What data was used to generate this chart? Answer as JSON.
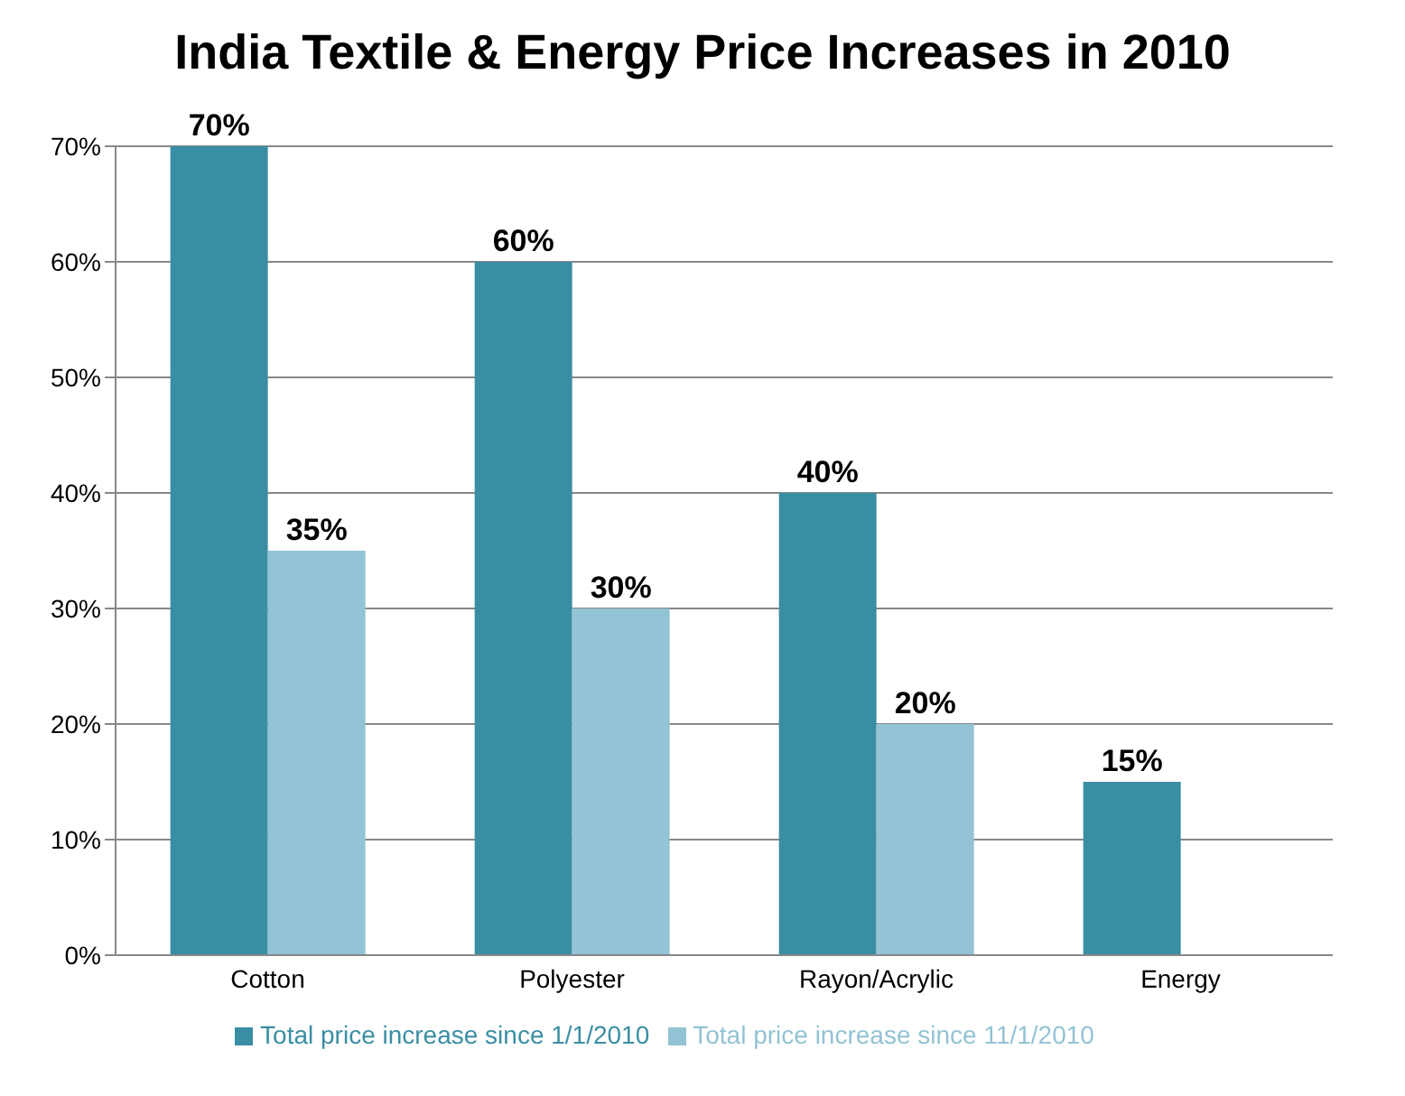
{
  "chart_data": {
    "type": "bar",
    "title": "India Textile & Energy Price Increases in 2010",
    "categories": [
      "Cotton",
      "Polyester",
      "Rayon/Acrylic",
      "Energy"
    ],
    "series": [
      {
        "name": "Total price increase since 1/1/2010",
        "color": "#3a8ea3",
        "values": [
          70,
          60,
          40,
          15
        ],
        "value_labels": [
          "70%",
          "60%",
          "40%",
          "15%"
        ]
      },
      {
        "name": "Total price increase since 11/1/2010",
        "color": "#93c3d4",
        "values": [
          35,
          30,
          20,
          null
        ],
        "value_labels": [
          "35%",
          "30%",
          "20%",
          null
        ]
      }
    ],
    "ylim": [
      0,
      70
    ],
    "yticks": [
      {
        "value": 0,
        "label": "0%"
      },
      {
        "value": 10,
        "label": "10%"
      },
      {
        "value": 20,
        "label": "20%"
      },
      {
        "value": 30,
        "label": "30%"
      },
      {
        "value": 40,
        "label": "40%"
      },
      {
        "value": 50,
        "label": "50%"
      },
      {
        "value": 60,
        "label": "60%"
      },
      {
        "value": 70,
        "label": "70%"
      }
    ],
    "grid": "y",
    "legend": "bottom"
  }
}
